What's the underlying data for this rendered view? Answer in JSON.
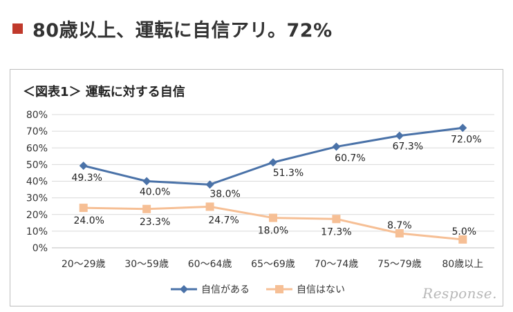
{
  "headline": {
    "text": "80歳以上、運転に自信アリ。72%",
    "marker_color": "#c0392b"
  },
  "chart_data": {
    "type": "line",
    "title": "＜図表1＞ 運転に対する自信",
    "categories": [
      "20～29歳",
      "30～59歳",
      "60～64歳",
      "65～69歳",
      "70～74歳",
      "75～79歳",
      "80歳以上"
    ],
    "series": [
      {
        "name": "自信がある",
        "values": [
          49.3,
          40.0,
          38.0,
          51.3,
          60.7,
          67.3,
          72.0
        ],
        "labels": [
          "49.3%",
          "40.0%",
          "38.0%",
          "51.3%",
          "60.7%",
          "67.3%",
          "72.0%"
        ],
        "color": "#4a72a8",
        "marker": "diamond"
      },
      {
        "name": "自信はない",
        "values": [
          24.0,
          23.3,
          24.7,
          18.0,
          17.3,
          8.7,
          5.0
        ],
        "labels": [
          "24.0%",
          "23.3%",
          "24.7%",
          "18.0%",
          "17.3%",
          "8.7%",
          "5.0%"
        ],
        "color": "#f6bf95",
        "marker": "square"
      }
    ],
    "yticks": [
      "0%",
      "10%",
      "20%",
      "30%",
      "40%",
      "50%",
      "60%",
      "70%",
      "80%"
    ],
    "ylim": [
      0,
      80
    ],
    "grid": true,
    "legend_position": "bottom"
  },
  "watermark": "Response."
}
